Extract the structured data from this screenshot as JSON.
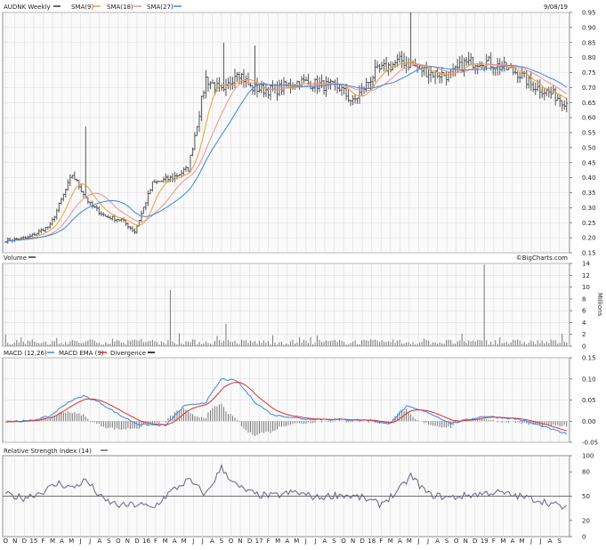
{
  "chart_data": [
    {
      "type": "candlestick",
      "title": "AUDNK Weekly",
      "date": "9/08/19",
      "legend": [
        {
          "name": "SMA(9)",
          "color": "#e4a23a"
        },
        {
          "name": "SMA(18)",
          "color": "#f28f8f"
        },
        {
          "name": "SMA(27)",
          "color": "#3a86e8"
        }
      ],
      "ylim": [
        0.15,
        0.95
      ],
      "yticks": [
        "0.95",
        "0.90",
        "0.85",
        "0.80",
        "0.75",
        "0.70",
        "0.65",
        "0.60",
        "0.55",
        "0.50",
        "0.45",
        "0.40",
        "0.35",
        "0.30",
        "0.25",
        "0.20",
        "0.15"
      ],
      "anchors": {
        "weeks": [
          0,
          10,
          20,
          30,
          38,
          45,
          52,
          58,
          66,
          75,
          82,
          90,
          98,
          104,
          110,
          120,
          132,
          140,
          150,
          156,
          166,
          178,
          190,
          200,
          206,
          214,
          222,
          230,
          236,
          245,
          252
        ],
        "close": [
          0.19,
          0.2,
          0.24,
          0.41,
          0.31,
          0.27,
          0.26,
          0.22,
          0.38,
          0.4,
          0.43,
          0.73,
          0.68,
          0.76,
          0.7,
          0.69,
          0.72,
          0.71,
          0.7,
          0.65,
          0.75,
          0.79,
          0.75,
          0.74,
          0.78,
          0.79,
          0.77,
          0.75,
          0.71,
          0.68,
          0.65
        ]
      },
      "spikes": [
        {
          "week": 36,
          "high": 0.57
        },
        {
          "week": 98,
          "high": 0.85
        },
        {
          "week": 112,
          "high": 0.84
        },
        {
          "week": 182,
          "high": 0.95
        }
      ]
    },
    {
      "type": "bar",
      "title": "Volume",
      "credit": "©BigCharts.com",
      "ylabel": "Millions",
      "ylim": [
        0,
        14
      ],
      "yticks": [
        "14",
        "12",
        "10",
        "8",
        "6",
        "4",
        "2",
        "0"
      ],
      "spikes": [
        {
          "week": 74,
          "value": 9.5
        },
        {
          "week": 99,
          "value": 3.8
        },
        {
          "week": 215,
          "value": 13.8
        }
      ]
    },
    {
      "type": "line",
      "title": "MACD (12,26)",
      "legend": [
        {
          "name": "MACD EMA (9)",
          "color": "#3a86e8"
        },
        {
          "name": "Divergence",
          "color": "#000000"
        }
      ],
      "signal_color": "#e0302b",
      "ylim": [
        -0.05,
        0.15
      ],
      "yticks": [
        "0.15",
        "0.10",
        "0.05",
        "0.00",
        "-0.05"
      ],
      "anchors": {
        "weeks": [
          0,
          10,
          20,
          28,
          35,
          42,
          52,
          60,
          72,
          80,
          90,
          97,
          104,
          112,
          120,
          135,
          150,
          165,
          172,
          180,
          190,
          200,
          215,
          230,
          240,
          252
        ],
        "macd": [
          0.0,
          0.0,
          0.012,
          0.045,
          0.06,
          0.045,
          0.012,
          -0.008,
          -0.01,
          0.035,
          0.045,
          0.1,
          0.095,
          0.045,
          0.015,
          0.005,
          0.004,
          0.002,
          -0.008,
          0.035,
          0.02,
          -0.005,
          0.012,
          0.005,
          -0.01,
          -0.03
        ]
      }
    },
    {
      "type": "line",
      "title": "Relative Strength Index (14)",
      "color": "#666680",
      "ylim": [
        0,
        100
      ],
      "yticks": [
        "100",
        "80",
        "50",
        "20",
        "0"
      ],
      "reference": 50,
      "anchors": {
        "weeks": [
          0,
          8,
          16,
          24,
          30,
          36,
          44,
          52,
          60,
          66,
          74,
          82,
          90,
          97,
          104,
          112,
          120,
          130,
          140,
          150,
          160,
          168,
          176,
          182,
          190,
          200,
          210,
          220,
          230,
          240,
          252
        ],
        "rsi": [
          52,
          48,
          55,
          66,
          60,
          70,
          45,
          38,
          40,
          35,
          55,
          70,
          52,
          85,
          62,
          52,
          50,
          55,
          48,
          52,
          48,
          40,
          55,
          75,
          52,
          48,
          52,
          55,
          50,
          45,
          35
        ]
      }
    }
  ],
  "xaxis": {
    "labels": [
      "O",
      "N",
      "D",
      "15",
      "F",
      "M",
      "A",
      "M",
      "J",
      "J",
      "A",
      "S",
      "O",
      "N",
      "D",
      "16",
      "F",
      "M",
      "A",
      "M",
      "J",
      "J",
      "A",
      "S",
      "O",
      "N",
      "D",
      "17",
      "F",
      "M",
      "A",
      "M",
      "J",
      "J",
      "A",
      "S",
      "O",
      "N",
      "D",
      "18",
      "F",
      "M",
      "A",
      "M",
      "J",
      "J",
      "A",
      "S",
      "O",
      "N",
      "D",
      "19",
      "F",
      "M",
      "A",
      "M",
      "J",
      "J",
      "A",
      "S"
    ]
  }
}
